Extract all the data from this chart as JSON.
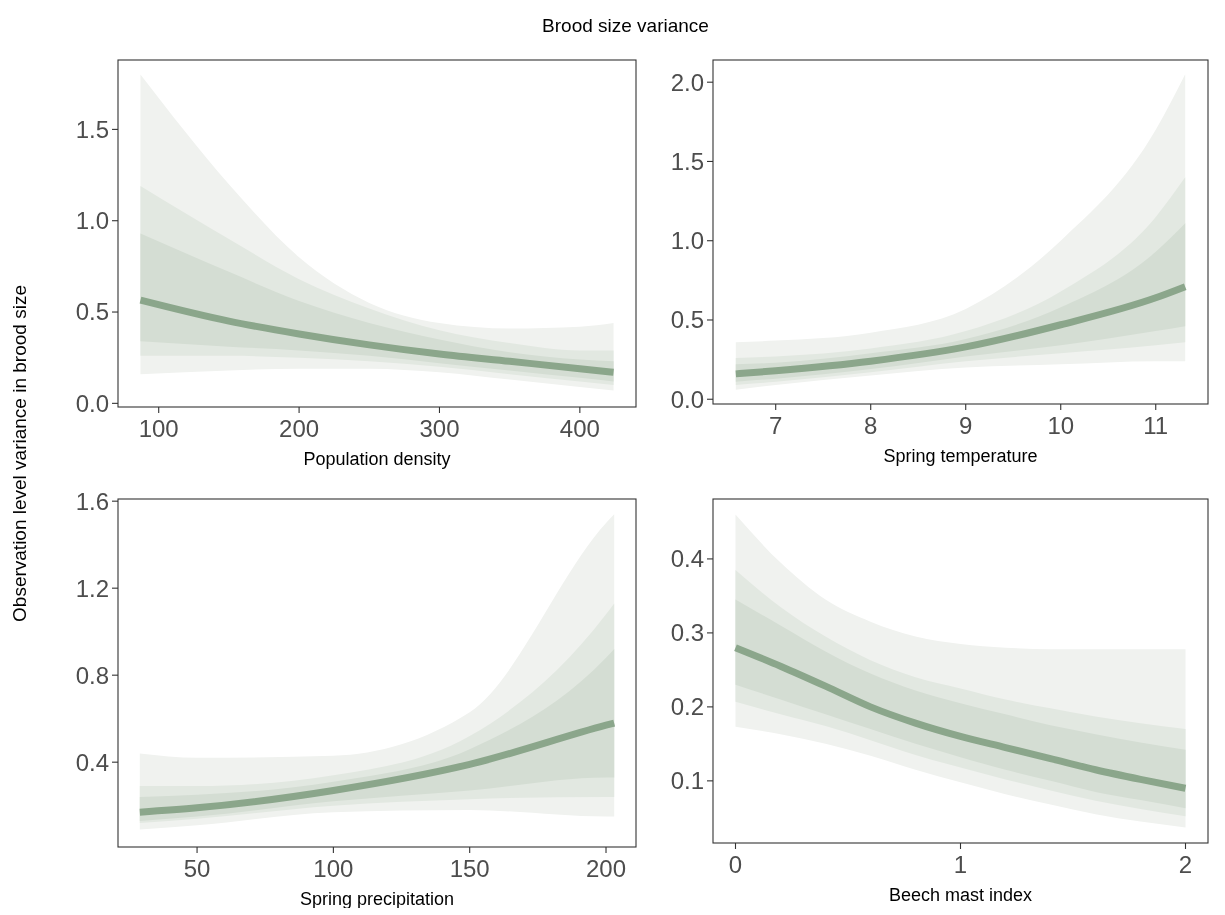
{
  "chart_data": [
    {
      "type": "line",
      "title": "Brood size variance",
      "ylabel": "Observation level variance in brood size",
      "xlabel": "Population density",
      "x": [
        87,
        150,
        200,
        250,
        300,
        350,
        400,
        424
      ],
      "xlim": [
        71,
        440
      ],
      "ylim": [
        -0.02,
        1.88
      ],
      "xticks": [
        100,
        200,
        300,
        400
      ],
      "yticks": [
        {
          "value": 0,
          "label": "0.0"
        },
        0.5,
        {
          "value": 1,
          "label": "1.0"
        },
        1.5
      ],
      "grid": false,
      "series": [
        {
          "type": "area",
          "color": "#f0f2ef",
          "values": [
            null,
            null,
            null,
            null,
            null,
            null,
            null,
            null
          ],
          "lower": [
            0.16,
            0.18,
            0.19,
            0.19,
            0.17,
            0.13,
            0.09,
            0.07
          ],
          "upper": [
            1.8,
            1.2,
            0.8,
            0.55,
            0.44,
            0.41,
            0.42,
            0.44
          ]
        },
        {
          "type": "area",
          "color": "#e2e8e1",
          "values": [
            null,
            null,
            null,
            null,
            null,
            null,
            null,
            null
          ],
          "lower": [
            0.26,
            0.26,
            0.25,
            0.23,
            0.2,
            0.16,
            0.12,
            0.1
          ],
          "upper": [
            1.19,
            0.9,
            0.68,
            0.52,
            0.4,
            0.33,
            0.29,
            0.29
          ]
        },
        {
          "type": "area",
          "color": "#d4ddd3",
          "values": [
            null,
            null,
            null,
            null,
            null,
            null,
            null,
            null
          ],
          "lower": [
            0.34,
            0.31,
            0.29,
            0.26,
            0.22,
            0.18,
            0.14,
            0.12
          ],
          "upper": [
            0.93,
            0.72,
            0.56,
            0.44,
            0.35,
            0.28,
            0.24,
            0.23
          ]
        },
        {
          "color": "#8ba68b",
          "values": [
            0.565,
            0.45,
            0.38,
            0.32,
            0.27,
            0.23,
            0.19,
            0.17
          ]
        }
      ]
    },
    {
      "type": "line",
      "xlabel": "Spring temperature",
      "x": [
        6.58,
        7,
        8,
        9,
        10,
        11,
        11.31
      ],
      "xlim": [
        6.34,
        11.55
      ],
      "ylim": [
        -0.03,
        2.14
      ],
      "xticks": [
        7,
        8,
        9,
        10,
        11
      ],
      "yticks": [
        {
          "value": 0,
          "label": "0.0"
        },
        0.5,
        {
          "value": 1,
          "label": "1.0"
        },
        1.5,
        {
          "value": 2,
          "label": "2.0"
        }
      ],
      "grid": false,
      "series": [
        {
          "type": "area",
          "color": "#f0f2ef",
          "values": [
            null,
            null,
            null,
            null,
            null,
            null,
            null
          ],
          "lower": [
            0.06,
            0.09,
            0.15,
            0.2,
            0.22,
            0.24,
            0.24
          ],
          "upper": [
            0.36,
            0.37,
            0.42,
            0.57,
            1.0,
            1.7,
            2.05
          ]
        },
        {
          "type": "area",
          "color": "#e2e8e1",
          "values": [
            null,
            null,
            null,
            null,
            null,
            null,
            null
          ],
          "lower": [
            0.09,
            0.11,
            0.17,
            0.24,
            0.29,
            0.34,
            0.36
          ],
          "upper": [
            0.26,
            0.27,
            0.32,
            0.43,
            0.68,
            1.15,
            1.4
          ]
        },
        {
          "type": "area",
          "color": "#d4ddd3",
          "values": [
            null,
            null,
            null,
            null,
            null,
            null,
            null
          ],
          "lower": [
            0.11,
            0.13,
            0.19,
            0.27,
            0.34,
            0.43,
            0.46
          ],
          "upper": [
            0.22,
            0.23,
            0.29,
            0.38,
            0.58,
            0.93,
            1.11
          ]
        },
        {
          "color": "#8ba68b",
          "values": [
            0.16,
            0.18,
            0.24,
            0.33,
            0.47,
            0.64,
            0.71
          ]
        }
      ]
    },
    {
      "type": "line",
      "xlabel": "Spring precipitation",
      "x": [
        29,
        50,
        100,
        150,
        200,
        203
      ],
      "xlim": [
        21,
        211
      ],
      "ylim": [
        0.01,
        1.61
      ],
      "xticks": [
        50,
        100,
        150,
        200
      ],
      "yticks": [
        0.4,
        0.8,
        1.2,
        1.6
      ],
      "grid": false,
      "series": [
        {
          "type": "area",
          "color": "#f0f2ef",
          "values": [
            null,
            null,
            null,
            null,
            null,
            null
          ],
          "lower": [
            0.09,
            0.11,
            0.17,
            0.18,
            0.15,
            0.15
          ],
          "upper": [
            0.44,
            0.42,
            0.43,
            0.63,
            1.5,
            1.54
          ]
        },
        {
          "type": "area",
          "color": "#e2e8e1",
          "values": [
            null,
            null,
            null,
            null,
            null,
            null
          ],
          "lower": [
            0.12,
            0.14,
            0.2,
            0.23,
            0.24,
            0.24
          ],
          "upper": [
            0.29,
            0.29,
            0.34,
            0.52,
            1.08,
            1.13
          ]
        },
        {
          "type": "area",
          "color": "#d4ddd3",
          "values": [
            null,
            null,
            null,
            null,
            null,
            null
          ],
          "lower": [
            0.13,
            0.15,
            0.22,
            0.27,
            0.33,
            0.33
          ],
          "upper": [
            0.24,
            0.25,
            0.31,
            0.46,
            0.88,
            0.92
          ]
        },
        {
          "color": "#8ba68b",
          "values": [
            0.17,
            0.19,
            0.27,
            0.39,
            0.57,
            0.58
          ]
        }
      ]
    },
    {
      "type": "line",
      "xlabel": "Beech mast index",
      "x": [
        0,
        0.2,
        0.4,
        0.6,
        0.8,
        1,
        1.2,
        1.4,
        1.6,
        1.8,
        2
      ],
      "xlim": [
        -0.1,
        2.1
      ],
      "ylim": [
        0.016,
        0.481
      ],
      "xticks": [
        0,
        1,
        2
      ],
      "yticks": [
        0.1,
        0.2,
        0.3,
        0.4
      ],
      "grid": false,
      "series": [
        {
          "type": "area",
          "color": "#f0f2ef",
          "values": [
            null,
            null,
            null,
            null,
            null,
            null,
            null,
            null,
            null,
            null,
            null
          ],
          "lower": [
            0.173,
            0.163,
            0.15,
            0.134,
            0.115,
            0.098,
            0.082,
            0.068,
            0.055,
            0.045,
            0.037
          ],
          "upper": [
            0.46,
            0.395,
            0.345,
            0.315,
            0.295,
            0.285,
            0.28,
            0.278,
            0.278,
            0.278,
            0.278
          ]
        },
        {
          "type": "area",
          "color": "#e2e8e1",
          "values": [
            null,
            null,
            null,
            null,
            null,
            null,
            null,
            null,
            null,
            null,
            null
          ],
          "lower": [
            0.207,
            0.19,
            0.174,
            0.155,
            0.135,
            0.118,
            0.102,
            0.087,
            0.073,
            0.062,
            0.052
          ],
          "upper": [
            0.385,
            0.335,
            0.295,
            0.263,
            0.24,
            0.225,
            0.21,
            0.198,
            0.187,
            0.178,
            0.17
          ]
        },
        {
          "type": "area",
          "color": "#d4ddd3",
          "values": [
            null,
            null,
            null,
            null,
            null,
            null,
            null,
            null,
            null,
            null,
            null
          ],
          "lower": [
            0.23,
            0.21,
            0.19,
            0.17,
            0.15,
            0.132,
            0.115,
            0.1,
            0.085,
            0.074,
            0.063
          ],
          "upper": [
            0.345,
            0.31,
            0.275,
            0.245,
            0.222,
            0.205,
            0.19,
            0.175,
            0.163,
            0.152,
            0.142
          ]
        },
        {
          "color": "#8ba68b",
          "values": [
            0.28,
            0.255,
            0.228,
            0.2,
            0.178,
            0.16,
            0.145,
            0.13,
            0.115,
            0.102,
            0.09
          ]
        }
      ]
    }
  ]
}
